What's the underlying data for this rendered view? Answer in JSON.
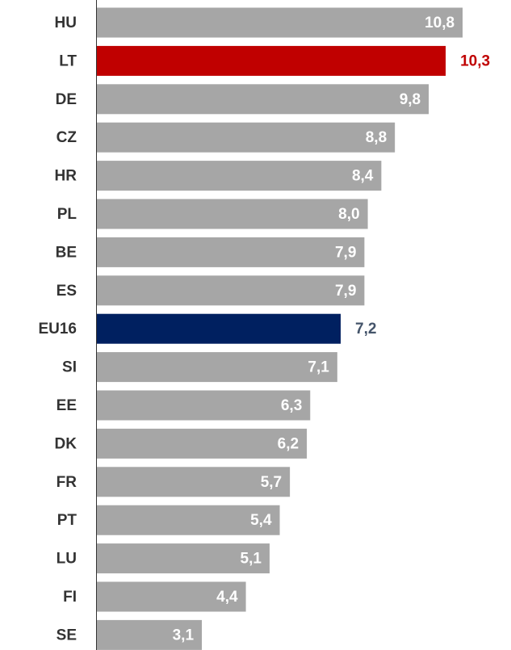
{
  "chart_data": {
    "type": "bar",
    "orientation": "horizontal",
    "categories": [
      "HU",
      "LT",
      "DE",
      "CZ",
      "HR",
      "PL",
      "BE",
      "ES",
      "EU16",
      "SI",
      "EE",
      "DK",
      "FR",
      "PT",
      "LU",
      "FI",
      "SE"
    ],
    "values": [
      10.8,
      10.3,
      9.8,
      8.8,
      8.4,
      8.0,
      7.9,
      7.9,
      7.2,
      7.1,
      6.3,
      6.2,
      5.7,
      5.4,
      5.1,
      4.4,
      3.1
    ],
    "value_labels": [
      "10,8",
      "10,3",
      "9,8",
      "8,8",
      "8,4",
      "8,0",
      "7,9",
      "7,9",
      "7,2",
      "7,1",
      "6,3",
      "6,2",
      "5,7",
      "5,4",
      "5,1",
      "4,4",
      "3,1"
    ],
    "colors": [
      "#a6a6a6",
      "#c00000",
      "#a6a6a6",
      "#a6a6a6",
      "#a6a6a6",
      "#a6a6a6",
      "#a6a6a6",
      "#a6a6a6",
      "#002060",
      "#a6a6a6",
      "#a6a6a6",
      "#a6a6a6",
      "#a6a6a6",
      "#a6a6a6",
      "#a6a6a6",
      "#a6a6a6",
      "#a6a6a6"
    ],
    "label_colors": [
      "#ffffff",
      "#c00000",
      "#ffffff",
      "#ffffff",
      "#ffffff",
      "#ffffff",
      "#ffffff",
      "#ffffff",
      "#44546a",
      "#ffffff",
      "#ffffff",
      "#ffffff",
      "#ffffff",
      "#ffffff",
      "#ffffff",
      "#ffffff",
      "#ffffff"
    ]
  }
}
